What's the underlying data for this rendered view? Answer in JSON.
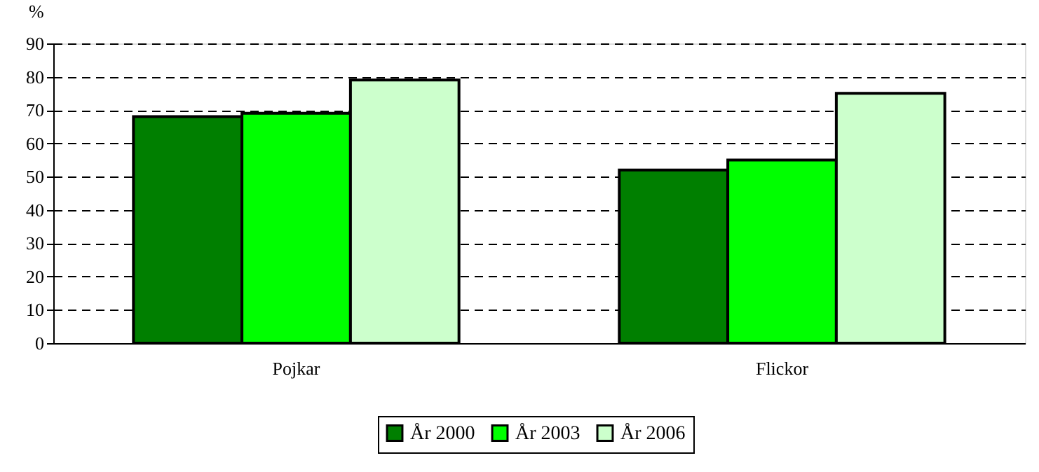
{
  "chart_data": {
    "type": "bar",
    "ylabel": "%",
    "categories": [
      "Pojkar",
      "Flickor"
    ],
    "series": [
      {
        "name": "År 2000",
        "color": "#007f00",
        "values": [
          68,
          52
        ]
      },
      {
        "name": "År 2003",
        "color": "#00ff00",
        "values": [
          69,
          55
        ]
      },
      {
        "name": "År 2006",
        "color": "#ccffcc",
        "values": [
          79,
          75
        ]
      }
    ],
    "ylim": [
      0,
      90
    ],
    "yticks": [
      0,
      10,
      20,
      30,
      40,
      50,
      60,
      70,
      80,
      90
    ],
    "grid": "y",
    "legend": "bottom"
  }
}
